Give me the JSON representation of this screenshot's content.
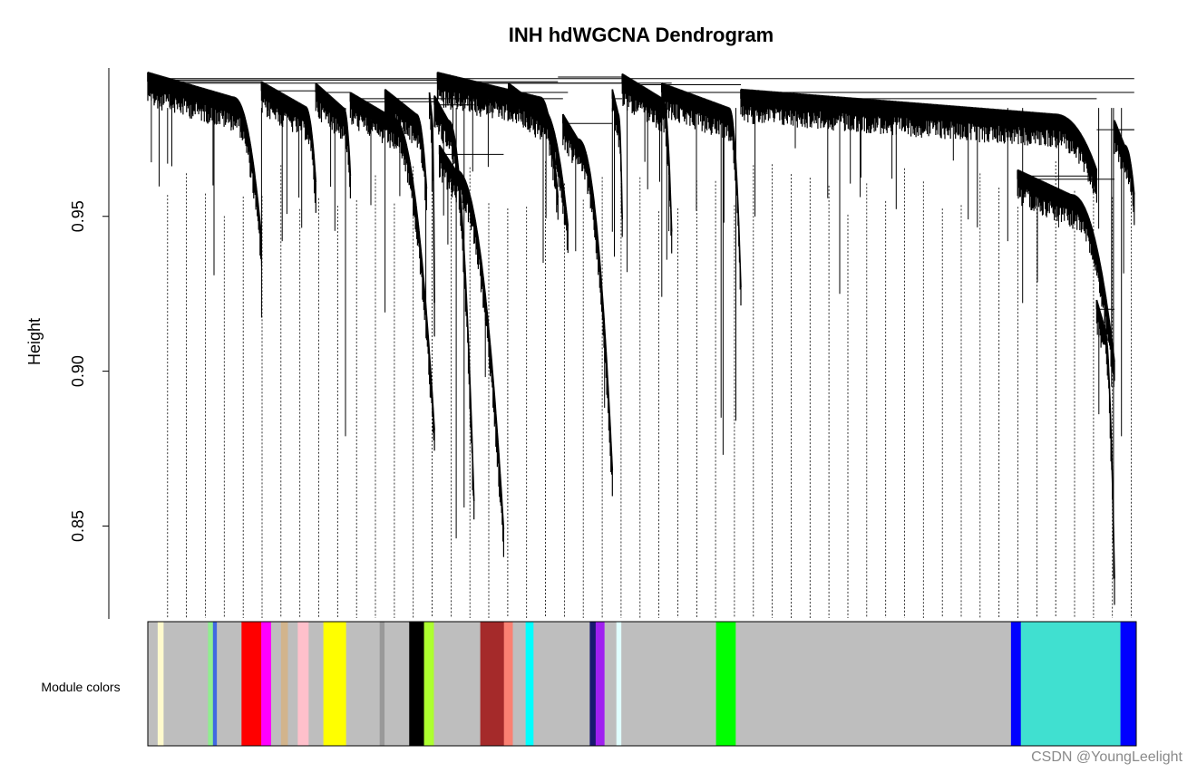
{
  "chart_data": {
    "type": "dendrogram",
    "title": "INH hdWGCNA Dendrogram",
    "ylabel": "Height",
    "ylim": [
      0.82,
      0.9985
    ],
    "yticks": [
      0.85,
      0.9,
      0.95
    ],
    "ytick_labels": [
      "0.85",
      "0.90",
      "0.95"
    ],
    "color_row_label": "Module colors",
    "module_colors": [
      {
        "color": "#bebebe",
        "frac": 0.01
      },
      {
        "color": "#fffacd",
        "frac": 0.006
      },
      {
        "color": "#bebebe",
        "frac": 0.045
      },
      {
        "color": "#90ee90",
        "frac": 0.005
      },
      {
        "color": "#4169e1",
        "frac": 0.004
      },
      {
        "color": "#bebebe",
        "frac": 0.025
      },
      {
        "color": "#ff0000",
        "frac": 0.02
      },
      {
        "color": "#ff00ff",
        "frac": 0.01
      },
      {
        "color": "#bebebe",
        "frac": 0.01
      },
      {
        "color": "#d2b48c",
        "frac": 0.007
      },
      {
        "color": "#bebebe",
        "frac": 0.01
      },
      {
        "color": "#ffc0cb",
        "frac": 0.011
      },
      {
        "color": "#bebebe",
        "frac": 0.015
      },
      {
        "color": "#ffff00",
        "frac": 0.023
      },
      {
        "color": "#bebebe",
        "frac": 0.034
      },
      {
        "color": "#999999",
        "frac": 0.005
      },
      {
        "color": "#bebebe",
        "frac": 0.025
      },
      {
        "color": "#000000",
        "frac": 0.015
      },
      {
        "color": "#adff2f",
        "frac": 0.01
      },
      {
        "color": "#bebebe",
        "frac": 0.047
      },
      {
        "color": "#a52a2a",
        "frac": 0.024
      },
      {
        "color": "#fa8072",
        "frac": 0.009
      },
      {
        "color": "#bebebe",
        "frac": 0.013
      },
      {
        "color": "#00ffff",
        "frac": 0.008
      },
      {
        "color": "#bebebe",
        "frac": 0.057
      },
      {
        "color": "#191970",
        "frac": 0.006
      },
      {
        "color": "#a020f0",
        "frac": 0.009
      },
      {
        "color": "#bebebe",
        "frac": 0.012
      },
      {
        "color": "#e0ffff",
        "frac": 0.005
      },
      {
        "color": "#bebebe",
        "frac": 0.096
      },
      {
        "color": "#00ff00",
        "frac": 0.02
      },
      {
        "color": "#bebebe",
        "frac": 0.279
      },
      {
        "color": "#0000ff",
        "frac": 0.01
      },
      {
        "color": "#40e0d0",
        "frac": 0.101
      },
      {
        "color": "#0000ff",
        "frac": 0.016
      }
    ]
  },
  "watermark": "CSDN @YoungLeelight"
}
